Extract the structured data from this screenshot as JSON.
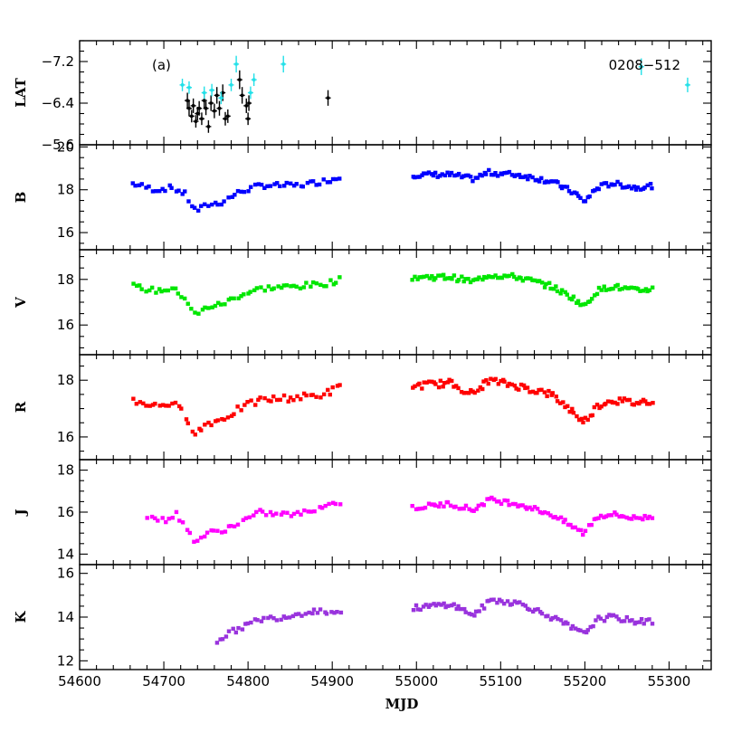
{
  "chart_data": {
    "type": "scatter",
    "source_label": "0208−512",
    "panel_label": "(a)",
    "xlabel": "MJD",
    "xlim": [
      54600,
      55350
    ],
    "x_ticks": [
      54600,
      54700,
      54800,
      54900,
      55000,
      55100,
      55200,
      55300
    ],
    "panels": [
      {
        "name": "LAT",
        "ylabel": "LAT",
        "ylim": [
          -7.6,
          -5.6
        ],
        "y_ticks": [
          -5.6,
          -6.4,
          -7.2
        ],
        "series": [
          {
            "color": "#000000",
            "kind": "errorbar",
            "points": [
              [
                54728,
                -6.45,
                0.15
              ],
              [
                54730,
                -6.3,
                0.15
              ],
              [
                54733,
                -6.15,
                0.12
              ],
              [
                54735,
                -6.35,
                0.14
              ],
              [
                54738,
                -6.05,
                0.12
              ],
              [
                54740,
                -6.2,
                0.13
              ],
              [
                54742,
                -6.3,
                0.14
              ],
              [
                54745,
                -6.1,
                0.12
              ],
              [
                54748,
                -6.45,
                0.15
              ],
              [
                54750,
                -6.3,
                0.13
              ],
              [
                54753,
                -5.95,
                0.12
              ],
              [
                54756,
                -6.4,
                0.15
              ],
              [
                54760,
                -6.25,
                0.14
              ],
              [
                54763,
                -6.55,
                0.16
              ],
              [
                54766,
                -6.3,
                0.14
              ],
              [
                54770,
                -6.6,
                0.16
              ],
              [
                54773,
                -6.1,
                0.13
              ],
              [
                54776,
                -6.15,
                0.13
              ],
              [
                54790,
                -6.85,
                0.18
              ],
              [
                54793,
                -6.55,
                0.16
              ],
              [
                54798,
                -6.35,
                0.14
              ],
              [
                54800,
                -6.1,
                0.12
              ],
              [
                54801,
                -6.4,
                0.15
              ],
              [
                54895,
                -6.5,
                0.15
              ]
            ]
          },
          {
            "color": "#22e0e8",
            "kind": "errorbar",
            "points": [
              [
                54722,
                -6.75,
                0.12
              ],
              [
                54730,
                -6.7,
                0.12
              ],
              [
                54748,
                -6.6,
                0.12
              ],
              [
                54757,
                -6.65,
                0.12
              ],
              [
                54768,
                -6.5,
                0.12
              ],
              [
                54780,
                -6.75,
                0.12
              ],
              [
                54786,
                -7.15,
                0.16
              ],
              [
                54803,
                -6.6,
                0.12
              ],
              [
                54807,
                -6.85,
                0.12
              ],
              [
                54842,
                -7.15,
                0.16
              ],
              [
                55267,
                -7.1,
                0.16
              ],
              [
                55322,
                -6.75,
                0.14
              ]
            ]
          }
        ]
      },
      {
        "name": "B",
        "ylabel": "B",
        "ylim": [
          20.1,
          15.2
        ],
        "y_ticks": [
          16,
          18,
          20
        ],
        "color": "#0000ff",
        "segments": [
          {
            "x0": 54662,
            "x1": 54912,
            "n": 64,
            "knots": [
              [
                54662,
                18.3
              ],
              [
                54690,
                18.0
              ],
              [
                54710,
                18.1
              ],
              [
                54725,
                17.8
              ],
              [
                54738,
                17.0
              ],
              [
                54752,
                17.3
              ],
              [
                54768,
                17.4
              ],
              [
                54790,
                17.9
              ],
              [
                54815,
                18.2
              ],
              [
                54860,
                18.2
              ],
              [
                54890,
                18.4
              ],
              [
                54912,
                18.6
              ]
            ]
          },
          {
            "x0": 54995,
            "x1": 55282,
            "n": 105,
            "knots": [
              [
                54995,
                18.7
              ],
              [
                55040,
                18.7
              ],
              [
                55068,
                18.5
              ],
              [
                55085,
                18.8
              ],
              [
                55120,
                18.7
              ],
              [
                55160,
                18.4
              ],
              [
                55190,
                17.8
              ],
              [
                55198,
                17.4
              ],
              [
                55215,
                18.1
              ],
              [
                55232,
                18.3
              ],
              [
                55260,
                18.1
              ],
              [
                55282,
                18.2
              ]
            ]
          }
        ]
      },
      {
        "name": "V",
        "ylabel": "V",
        "ylim": [
          19.3,
          14.7
        ],
        "y_ticks": [
          16,
          18
        ],
        "color": "#00e600",
        "segments": [
          {
            "x0": 54662,
            "x1": 54912,
            "n": 64,
            "knots": [
              [
                54662,
                17.7
              ],
              [
                54690,
                17.5
              ],
              [
                54710,
                17.6
              ],
              [
                54725,
                17.2
              ],
              [
                54738,
                16.4
              ],
              [
                54752,
                16.8
              ],
              [
                54768,
                16.9
              ],
              [
                54790,
                17.3
              ],
              [
                54815,
                17.6
              ],
              [
                54860,
                17.7
              ],
              [
                54890,
                17.8
              ],
              [
                54912,
                18.0
              ]
            ]
          },
          {
            "x0": 54995,
            "x1": 55282,
            "n": 105,
            "knots": [
              [
                54995,
                18.1
              ],
              [
                55040,
                18.1
              ],
              [
                55068,
                17.9
              ],
              [
                55085,
                18.2
              ],
              [
                55120,
                18.1
              ],
              [
                55160,
                17.7
              ],
              [
                55190,
                17.1
              ],
              [
                55198,
                16.8
              ],
              [
                55215,
                17.5
              ],
              [
                55232,
                17.7
              ],
              [
                55260,
                17.5
              ],
              [
                55282,
                17.6
              ]
            ]
          }
        ]
      },
      {
        "name": "R",
        "ylabel": "R",
        "ylim": [
          18.9,
          15.2
        ],
        "y_ticks": [
          16,
          18
        ],
        "color": "#ff0000",
        "segments": [
          {
            "x0": 54662,
            "x1": 54912,
            "n": 64,
            "knots": [
              [
                54662,
                17.3
              ],
              [
                54690,
                17.1
              ],
              [
                54710,
                17.2
              ],
              [
                54725,
                16.8
              ],
              [
                54738,
                16.1
              ],
              [
                54752,
                16.5
              ],
              [
                54768,
                16.6
              ],
              [
                54790,
                17.0
              ],
              [
                54815,
                17.3
              ],
              [
                54860,
                17.4
              ],
              [
                54890,
                17.5
              ],
              [
                54912,
                17.8
              ]
            ]
          },
          {
            "x0": 54995,
            "x1": 55282,
            "n": 105,
            "knots": [
              [
                54995,
                17.8
              ],
              [
                55040,
                17.9
              ],
              [
                55068,
                17.5
              ],
              [
                55085,
                18.0
              ],
              [
                55120,
                17.8
              ],
              [
                55160,
                17.5
              ],
              [
                55190,
                16.8
              ],
              [
                55198,
                16.5
              ],
              [
                55215,
                17.1
              ],
              [
                55232,
                17.3
              ],
              [
                55260,
                17.2
              ],
              [
                55282,
                17.3
              ]
            ]
          }
        ]
      },
      {
        "name": "J",
        "ylabel": "J",
        "ylim": [
          18.5,
          13.5
        ],
        "y_ticks": [
          14,
          16,
          18
        ],
        "color": "#ff00ff",
        "segments": [
          {
            "x0": 54680,
            "x1": 54912,
            "n": 56,
            "knots": [
              [
                54680,
                15.8
              ],
              [
                54700,
                15.6
              ],
              [
                54715,
                15.9
              ],
              [
                54730,
                15.0
              ],
              [
                54738,
                14.6
              ],
              [
                54752,
                15.0
              ],
              [
                54768,
                15.1
              ],
              [
                54790,
                15.5
              ],
              [
                54815,
                16.0
              ],
              [
                54830,
                15.9
              ],
              [
                54860,
                15.9
              ],
              [
                54890,
                16.3
              ],
              [
                54912,
                16.5
              ]
            ]
          },
          {
            "x0": 54995,
            "x1": 55282,
            "n": 95,
            "knots": [
              [
                54995,
                16.2
              ],
              [
                55040,
                16.4
              ],
              [
                55068,
                16.1
              ],
              [
                55085,
                16.6
              ],
              [
                55120,
                16.4
              ],
              [
                55160,
                15.9
              ],
              [
                55190,
                15.2
              ],
              [
                55198,
                15.0
              ],
              [
                55215,
                15.8
              ],
              [
                55232,
                15.9
              ],
              [
                55260,
                15.7
              ],
              [
                55282,
                15.8
              ]
            ]
          }
        ]
      },
      {
        "name": "K",
        "ylabel": "K",
        "ylim": [
          16.4,
          11.6
        ],
        "y_ticks": [
          12,
          14,
          16
        ],
        "color": "#9933dd",
        "segments": [
          {
            "x0": 54762,
            "x1": 54912,
            "n": 40,
            "knots": [
              [
                54762,
                12.9
              ],
              [
                54775,
                13.2
              ],
              [
                54790,
                13.5
              ],
              [
                54815,
                13.9
              ],
              [
                54840,
                14.0
              ],
              [
                54880,
                14.3
              ],
              [
                54912,
                14.2
              ]
            ]
          },
          {
            "x0": 54995,
            "x1": 55282,
            "n": 95,
            "knots": [
              [
                54995,
                14.4
              ],
              [
                55040,
                14.6
              ],
              [
                55068,
                14.1
              ],
              [
                55090,
                14.8
              ],
              [
                55125,
                14.6
              ],
              [
                55160,
                14.0
              ],
              [
                55190,
                13.4
              ],
              [
                55198,
                13.2
              ],
              [
                55215,
                13.9
              ],
              [
                55232,
                14.0
              ],
              [
                55260,
                13.8
              ],
              [
                55282,
                13.8
              ]
            ]
          }
        ]
      }
    ]
  }
}
